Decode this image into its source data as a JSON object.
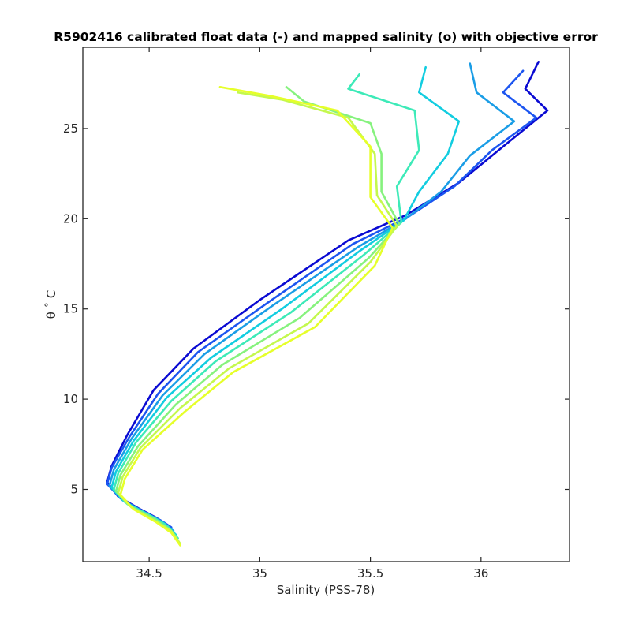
{
  "chart_data": {
    "type": "line",
    "title": "R5902416 calibrated float data (-) and mapped salinity (o) with objective error",
    "xlabel": "Salinity (PSS-78)",
    "ylabel": "θ ˚ C",
    "xlim": [
      34.2,
      36.4
    ],
    "ylim": [
      1.0,
      29.5
    ],
    "x_ticks": [
      34.5,
      35,
      35.5,
      36
    ],
    "x_tick_labels": [
      "34.5",
      "35",
      "35.5",
      "36"
    ],
    "y_ticks": [
      5,
      10,
      15,
      20,
      25
    ],
    "y_tick_labels": [
      "5",
      "10",
      "15",
      "20",
      "25"
    ],
    "grid": false,
    "legend": "none",
    "colormap": [
      "#0a0ad2",
      "#1c55f0",
      "#1a9de6",
      "#12cde0",
      "#3deab8",
      "#86f27e",
      "#c4f84e",
      "#e6ff2a"
    ],
    "series": [
      {
        "values": [
          [
            36.26,
            28.7
          ],
          [
            36.2,
            27.2
          ],
          [
            36.3,
            26.0
          ],
          [
            36.1,
            24.0
          ],
          [
            35.9,
            22.0
          ],
          [
            35.66,
            20.2
          ],
          [
            35.4,
            18.8
          ],
          [
            35.0,
            15.5
          ],
          [
            34.7,
            12.8
          ],
          [
            34.52,
            10.5
          ],
          [
            34.4,
            8.0
          ],
          [
            34.33,
            6.3
          ],
          [
            34.31,
            5.4
          ],
          [
            34.36,
            4.6
          ],
          [
            34.46,
            3.9
          ],
          [
            34.53,
            3.45
          ],
          [
            34.58,
            3.05
          ]
        ]
      },
      {
        "values": [
          [
            36.19,
            28.2
          ],
          [
            36.1,
            27.0
          ],
          [
            36.25,
            25.6
          ],
          [
            36.05,
            23.8
          ],
          [
            35.88,
            21.8
          ],
          [
            35.67,
            20.1
          ],
          [
            35.42,
            18.6
          ],
          [
            35.03,
            15.3
          ],
          [
            34.72,
            12.6
          ],
          [
            34.54,
            10.3
          ],
          [
            34.41,
            7.9
          ],
          [
            34.33,
            6.2
          ],
          [
            34.31,
            5.3
          ],
          [
            34.37,
            4.5
          ],
          [
            34.47,
            3.8
          ],
          [
            34.55,
            3.3
          ],
          [
            34.6,
            2.9
          ]
        ]
      },
      {
        "values": [
          [
            35.95,
            28.6
          ],
          [
            35.98,
            27.0
          ],
          [
            36.15,
            25.4
          ],
          [
            35.95,
            23.5
          ],
          [
            35.82,
            21.5
          ],
          [
            35.66,
            20.0
          ],
          [
            35.44,
            18.4
          ],
          [
            35.06,
            15.2
          ],
          [
            34.75,
            12.5
          ],
          [
            34.56,
            10.2
          ],
          [
            34.42,
            7.8
          ],
          [
            34.34,
            6.1
          ],
          [
            34.32,
            5.2
          ],
          [
            34.38,
            4.4
          ],
          [
            34.48,
            3.7
          ],
          [
            34.56,
            3.2
          ],
          [
            34.61,
            2.7
          ]
        ]
      },
      {
        "values": [
          [
            35.75,
            28.4
          ],
          [
            35.72,
            27.0
          ],
          [
            35.9,
            25.4
          ],
          [
            35.85,
            23.6
          ],
          [
            35.72,
            21.5
          ],
          [
            35.65,
            19.9
          ],
          [
            35.45,
            18.2
          ],
          [
            35.1,
            15.0
          ],
          [
            34.78,
            12.3
          ],
          [
            34.58,
            10.1
          ],
          [
            34.43,
            7.7
          ],
          [
            34.35,
            6.0
          ],
          [
            34.33,
            5.1
          ],
          [
            34.39,
            4.3
          ],
          [
            34.5,
            3.6
          ],
          [
            34.57,
            3.1
          ],
          [
            34.62,
            2.5
          ]
        ]
      },
      {
        "values": [
          [
            35.45,
            28.0
          ],
          [
            35.4,
            27.2
          ],
          [
            35.7,
            26.0
          ],
          [
            35.72,
            23.8
          ],
          [
            35.62,
            21.8
          ],
          [
            35.64,
            19.8
          ],
          [
            35.47,
            18.0
          ],
          [
            35.14,
            14.8
          ],
          [
            34.8,
            12.1
          ],
          [
            34.6,
            9.9
          ],
          [
            34.44,
            7.6
          ],
          [
            34.36,
            5.9
          ],
          [
            34.34,
            5.0
          ],
          [
            34.4,
            4.2
          ],
          [
            34.51,
            3.5
          ],
          [
            34.58,
            3.0
          ],
          [
            34.63,
            2.3
          ]
        ]
      },
      {
        "values": [
          [
            35.12,
            27.3
          ],
          [
            35.2,
            26.5
          ],
          [
            35.5,
            25.3
          ],
          [
            35.55,
            23.6
          ],
          [
            35.55,
            21.5
          ],
          [
            35.63,
            19.7
          ],
          [
            35.49,
            17.8
          ],
          [
            35.18,
            14.5
          ],
          [
            34.83,
            11.9
          ],
          [
            34.62,
            9.7
          ],
          [
            34.45,
            7.4
          ],
          [
            34.37,
            5.8
          ],
          [
            34.35,
            4.9
          ],
          [
            34.41,
            4.1
          ],
          [
            34.52,
            3.4
          ],
          [
            34.59,
            2.8
          ],
          [
            34.63,
            2.1
          ]
        ]
      },
      {
        "values": [
          [
            34.9,
            27.0
          ],
          [
            35.1,
            26.6
          ],
          [
            35.4,
            25.6
          ],
          [
            35.52,
            23.6
          ],
          [
            35.53,
            21.3
          ],
          [
            35.62,
            19.6
          ],
          [
            35.5,
            17.6
          ],
          [
            35.22,
            14.2
          ],
          [
            34.86,
            11.7
          ],
          [
            34.64,
            9.5
          ],
          [
            34.46,
            7.3
          ],
          [
            34.38,
            5.7
          ],
          [
            34.36,
            4.8
          ],
          [
            34.42,
            4.0
          ],
          [
            34.52,
            3.3
          ],
          [
            34.6,
            2.7
          ],
          [
            34.64,
            2.0
          ]
        ]
      },
      {
        "values": [
          [
            34.82,
            27.3
          ],
          [
            35.05,
            26.8
          ],
          [
            35.35,
            26.0
          ],
          [
            35.5,
            24.0
          ],
          [
            35.5,
            21.2
          ],
          [
            35.6,
            19.5
          ],
          [
            35.52,
            17.4
          ],
          [
            35.25,
            14.0
          ],
          [
            34.88,
            11.5
          ],
          [
            34.66,
            9.3
          ],
          [
            34.47,
            7.2
          ],
          [
            34.39,
            5.6
          ],
          [
            34.37,
            4.7
          ],
          [
            34.43,
            3.9
          ],
          [
            34.53,
            3.2
          ],
          [
            34.6,
            2.6
          ],
          [
            34.64,
            1.9
          ]
        ]
      }
    ]
  }
}
